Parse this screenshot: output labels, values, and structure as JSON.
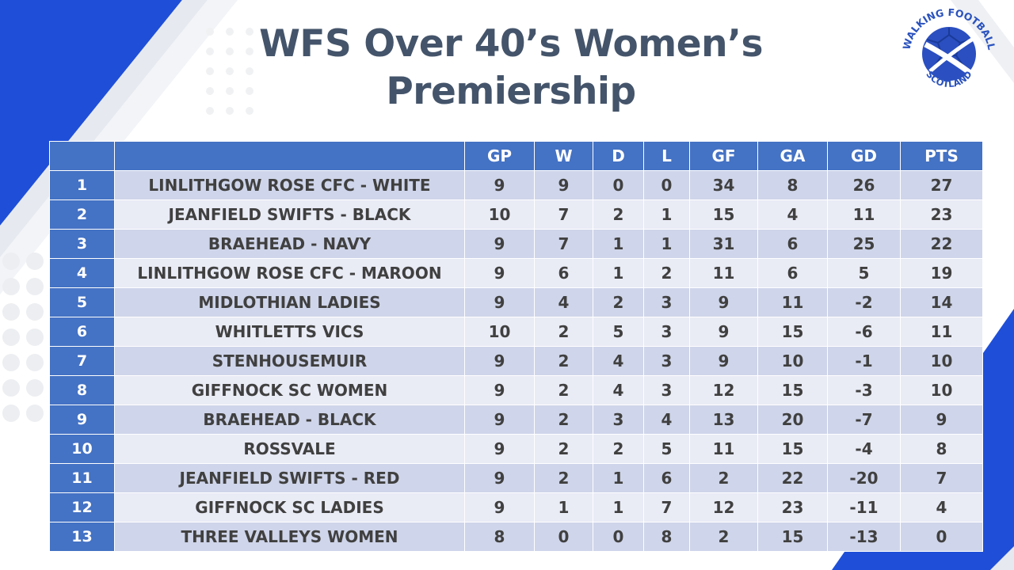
{
  "title": {
    "line1": "WFS Over 40’s Women’s",
    "line2": "Premiership"
  },
  "logo": {
    "top_text": "WALKING FOOTBALL",
    "bottom_text": "SCOTLAND",
    "colors": {
      "ring": "#2a52be",
      "ball": "#2b4fc0",
      "saltire": "#ffffff"
    }
  },
  "table": {
    "headers": [
      "",
      "",
      "GP",
      "W",
      "D",
      "L",
      "GF",
      "GA",
      "GD",
      "PTS"
    ],
    "rows": [
      [
        "1",
        "LINLITHGOW ROSE CFC - WHITE",
        "9",
        "9",
        "0",
        "0",
        "34",
        "8",
        "26",
        "27"
      ],
      [
        "2",
        "JEANFIELD SWIFTS - BLACK",
        "10",
        "7",
        "2",
        "1",
        "15",
        "4",
        "11",
        "23"
      ],
      [
        "3",
        "BRAEHEAD - NAVY",
        "9",
        "7",
        "1",
        "1",
        "31",
        "6",
        "25",
        "22"
      ],
      [
        "4",
        "LINLITHGOW ROSE CFC - MAROON",
        "9",
        "6",
        "1",
        "2",
        "11",
        "6",
        "5",
        "19"
      ],
      [
        "5",
        "MIDLOTHIAN LADIES",
        "9",
        "4",
        "2",
        "3",
        "9",
        "11",
        "-2",
        "14"
      ],
      [
        "6",
        "WHITLETTS VICS",
        "10",
        "2",
        "5",
        "3",
        "9",
        "15",
        "-6",
        "11"
      ],
      [
        "7",
        "STENHOUSEMUIR",
        "9",
        "2",
        "4",
        "3",
        "9",
        "10",
        "-1",
        "10"
      ],
      [
        "8",
        "GIFFNOCK SC WOMEN",
        "9",
        "2",
        "4",
        "3",
        "12",
        "15",
        "-3",
        "10"
      ],
      [
        "9",
        "BRAEHEAD - BLACK",
        "9",
        "2",
        "3",
        "4",
        "13",
        "20",
        "-7",
        "9"
      ],
      [
        "10",
        "ROSSVALE",
        "9",
        "2",
        "2",
        "5",
        "11",
        "15",
        "-4",
        "8"
      ],
      [
        "11",
        "JEANFIELD SWIFTS - RED",
        "9",
        "2",
        "1",
        "6",
        "2",
        "22",
        "-20",
        "7"
      ],
      [
        "12",
        "GIFFNOCK SC LADIES",
        "9",
        "1",
        "1",
        "7",
        "12",
        "23",
        "-11",
        "4"
      ],
      [
        "13",
        "THREE VALLEYS WOMEN",
        "8",
        "0",
        "0",
        "8",
        "2",
        "15",
        "-13",
        "0"
      ]
    ]
  },
  "colors": {
    "header_blue": "#4472c4",
    "row_dark": "#cfd5ea",
    "row_light": "#e9ebf5",
    "title_text": "#44546a",
    "accent_blue": "#1f4fd8"
  }
}
